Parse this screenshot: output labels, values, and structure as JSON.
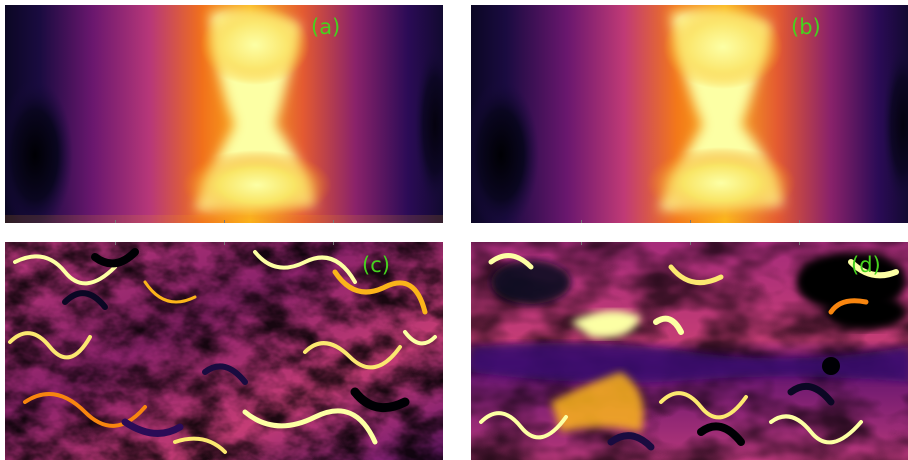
{
  "panels": {
    "a": {
      "label": "(a)"
    },
    "b": {
      "label": "(b)"
    },
    "c": {
      "label": "(c)"
    },
    "d": {
      "label": "(d)"
    }
  },
  "colors": {
    "colormap": "inferno",
    "label_color": "#46d21e",
    "background": "#ffffff"
  }
}
